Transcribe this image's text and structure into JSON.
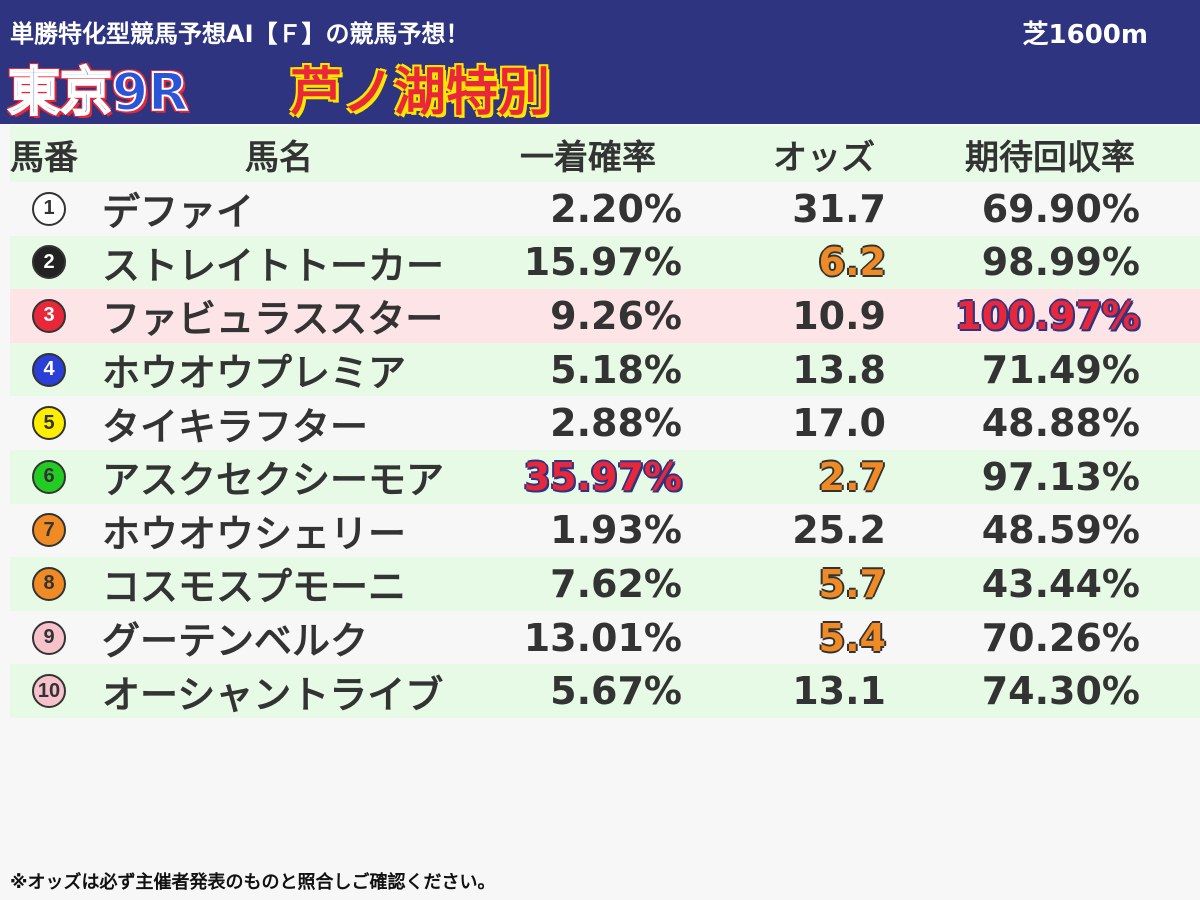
{
  "header": {
    "title": "単勝特化型競馬予想AI【Ｆ】の競馬予想！",
    "surface": "芝1600m",
    "race_no": "東京9R",
    "race_name": "芦ノ湖特別"
  },
  "columns": {
    "num": "馬番",
    "name": "馬名",
    "prob": "一着確率",
    "odds": "オッズ",
    "ret": "期待回収率"
  },
  "rows": [
    {
      "badge": "1",
      "name": "デファイ",
      "prob": "2.20%",
      "odds": "31.7",
      "ret": "69.90%",
      "badge_bg": "#ffffff",
      "badge_fg": "#333333"
    },
    {
      "badge": "2",
      "name": "ストレイトトーカー",
      "prob": "15.97%",
      "odds": "6.2",
      "ret": "98.99%",
      "badge_bg": "#222222",
      "badge_fg": "#ffffff"
    },
    {
      "badge": "3",
      "name": "ファビュラススター",
      "prob": "9.26%",
      "odds": "10.9",
      "ret": "100.97%",
      "badge_bg": "#e8283a",
      "badge_fg": "#ffffff"
    },
    {
      "badge": "4",
      "name": "ホウオウプレミア",
      "prob": "5.18%",
      "odds": "13.8",
      "ret": "71.49%",
      "badge_bg": "#2a3fd6",
      "badge_fg": "#ffffff"
    },
    {
      "badge": "5",
      "name": "タイキラフター",
      "prob": "2.88%",
      "odds": "17.0",
      "ret": "48.88%",
      "badge_bg": "#ffee00",
      "badge_fg": "#333333"
    },
    {
      "badge": "6",
      "name": "アスクセクシーモア",
      "prob": "35.97%",
      "odds": "2.7",
      "ret": "97.13%",
      "badge_bg": "#22cc22",
      "badge_fg": "#333333"
    },
    {
      "badge": "7",
      "name": "ホウオウシェリー",
      "prob": "1.93%",
      "odds": "25.2",
      "ret": "48.59%",
      "badge_bg": "#f08a24",
      "badge_fg": "#333333"
    },
    {
      "badge": "8",
      "name": "コスモスプモーニ",
      "prob": "7.62%",
      "odds": "5.7",
      "ret": "43.44%",
      "badge_bg": "#f08a24",
      "badge_fg": "#333333"
    },
    {
      "badge": "9",
      "name": "グーテンベルク",
      "prob": "13.01%",
      "odds": "5.4",
      "ret": "70.26%",
      "badge_bg": "#f7c2cc",
      "badge_fg": "#333333"
    },
    {
      "badge": "10",
      "name": "オーシャントライブ",
      "prob": "5.67%",
      "odds": "13.1",
      "ret": "74.30%",
      "badge_bg": "#f7c2cc",
      "badge_fg": "#333333"
    }
  ],
  "footer": "※オッズは必ず主催者発表のものと照合しご確認ください。"
}
